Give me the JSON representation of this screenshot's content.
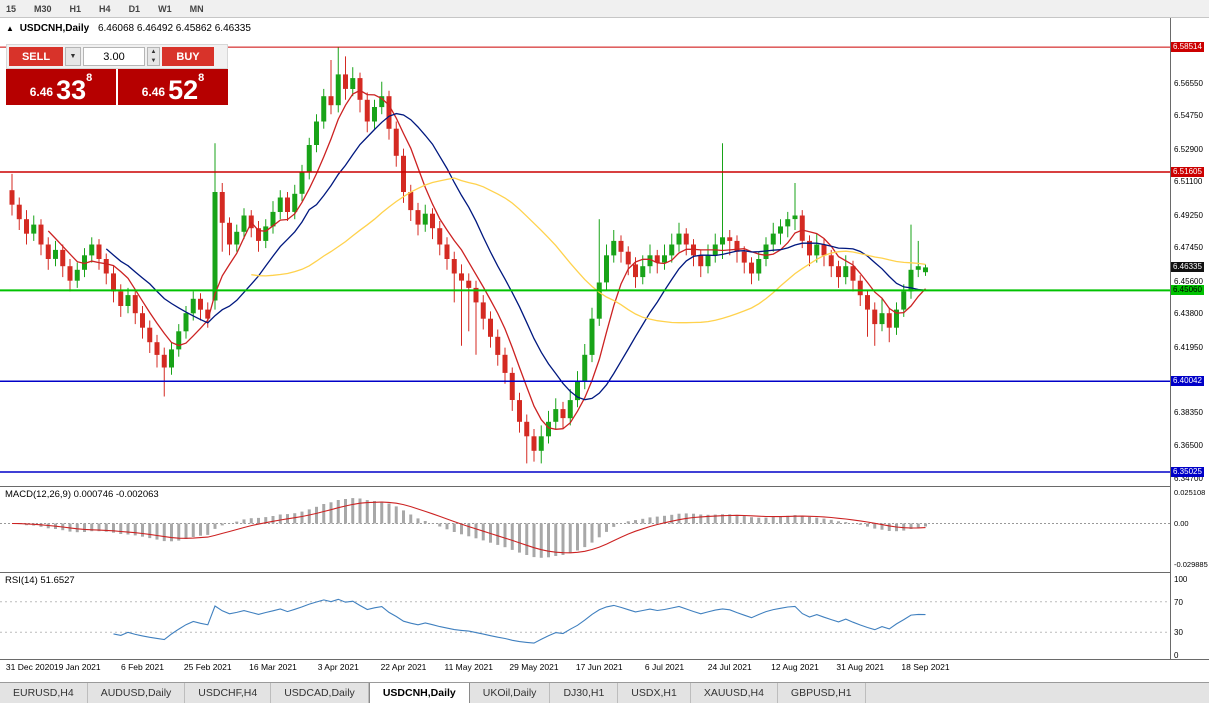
{
  "window": {
    "timeframes": [
      "15",
      "M30",
      "H1",
      "H4",
      "D1",
      "W1",
      "MN"
    ]
  },
  "chart_header": {
    "collapse_icon": "▲",
    "symbol": "USDCNH,Daily",
    "ohlc": "6.46068 6.46492 6.45862 6.46335"
  },
  "trade_panel": {
    "sell_label": "SELL",
    "buy_label": "BUY",
    "volume": "3.00",
    "dropdown_icon": "▼",
    "spin_up_icon": "▲",
    "spin_down_icon": "▼",
    "sell_price": {
      "prefix": "6.46",
      "big": "33",
      "sup": "8"
    },
    "buy_price": {
      "prefix": "6.46",
      "big": "52",
      "sup": "8"
    }
  },
  "indicators": {
    "macd_label": "MACD(12,26,9) 0.000746 -0.002063",
    "rsi_label": "RSI(14) 51.6527"
  },
  "tabs": {
    "active_index": 4,
    "items": [
      "EURUSD,H4",
      "AUDUSD,Daily",
      "USDCHF,H4",
      "USDCAD,Daily",
      "USDCNH,Daily",
      "UKOil,Daily",
      "DJ30,H1",
      "USDX,H1",
      "XAUUSD,H4",
      "GBPUSD,H1"
    ]
  },
  "colors": {
    "button_red": "#d8332a",
    "tile_red": "#b60000",
    "up_candle": "#18a318",
    "down_candle": "#d42a22",
    "ma_fast": "#cc2222",
    "ma_mid": "#00187f",
    "ma_slow": "#ffd24d",
    "level_red": "#cc0000",
    "level_green": "#00c200",
    "level_blue": "#0000c8",
    "macd_hist": "#a8a8a8",
    "macd_signal": "#cc2222",
    "rsi_line": "#4080bf",
    "current_tag_bg": "#111111"
  },
  "chart_data": {
    "type": "candlestick",
    "symbol": "USDCNH",
    "timeframe": "Daily",
    "title": "USDCNH,Daily",
    "x_labels": [
      "31 Dec 2020",
      "19 Jan 2021",
      "6 Feb 2021",
      "25 Feb 2021",
      "16 Mar 2021",
      "3 Apr 2021",
      "22 Apr 2021",
      "11 May 2021",
      "29 May 2021",
      "17 Jun 2021",
      "6 Jul 2021",
      "24 Jul 2021",
      "12 Aug 2021",
      "31 Aug 2021",
      "18 Sep 2021"
    ],
    "label_every": 9,
    "price_axis": {
      "min": 6.3425,
      "max": 6.6012,
      "ticks": [
        "6.56550",
        "6.54750",
        "6.52900",
        "6.51100",
        "6.49250",
        "6.47450",
        "6.45600",
        "6.43800",
        "6.41950",
        "6.38350",
        "6.36500",
        "6.34700"
      ]
    },
    "special_levels": [
      {
        "label": "6.58514",
        "color_key": "level_red",
        "width": 1,
        "text_color": "#ffffff"
      },
      {
        "label": "6.51605",
        "color_key": "level_red",
        "width": 1.6,
        "text_color": "#ffffff"
      },
      {
        "label": "6.45060",
        "color_key": "level_green",
        "width": 2,
        "text_color": "#000000"
      },
      {
        "label": "6.40042",
        "color_key": "level_blue",
        "width": 1.5,
        "text_color": "#ffffff"
      },
      {
        "label": "6.35025",
        "color_key": "level_blue",
        "width": 1.5,
        "text_color": "#ffffff"
      }
    ],
    "current_price": {
      "label": "6.46335"
    },
    "ma_lines": [
      {
        "period": 6,
        "color_key": "ma_fast"
      },
      {
        "period": 14,
        "color_key": "ma_mid"
      },
      {
        "period": 34,
        "color_key": "ma_slow"
      }
    ],
    "macd": {
      "params": "12,26,9",
      "value": 0.000746,
      "signal": -0.002063,
      "axis": [
        "0.025108",
        "0.00",
        "-0.029885"
      ]
    },
    "rsi": {
      "period": 14,
      "value": 51.6527,
      "axis": [
        "100",
        "70",
        "30",
        "0"
      ]
    },
    "candles": [
      [
        6.506,
        6.515,
        6.492,
        6.498
      ],
      [
        6.498,
        6.502,
        6.484,
        6.49
      ],
      [
        6.49,
        6.495,
        6.476,
        6.482
      ],
      [
        6.482,
        6.492,
        6.478,
        6.487
      ],
      [
        6.487,
        6.49,
        6.47,
        6.476
      ],
      [
        6.476,
        6.48,
        6.462,
        6.468
      ],
      [
        6.468,
        6.478,
        6.464,
        6.473
      ],
      [
        6.473,
        6.476,
        6.458,
        6.464
      ],
      [
        6.464,
        6.468,
        6.45,
        6.456
      ],
      [
        6.456,
        6.466,
        6.452,
        6.462
      ],
      [
        6.462,
        6.474,
        6.458,
        6.47
      ],
      [
        6.47,
        6.48,
        6.466,
        6.476
      ],
      [
        6.476,
        6.479,
        6.462,
        6.468
      ],
      [
        6.468,
        6.471,
        6.454,
        6.46
      ],
      [
        6.46,
        6.464,
        6.444,
        6.45
      ],
      [
        6.45,
        6.454,
        6.436,
        6.442
      ],
      [
        6.442,
        6.452,
        6.438,
        6.448
      ],
      [
        6.448,
        6.451,
        6.432,
        6.438
      ],
      [
        6.438,
        6.442,
        6.424,
        6.43
      ],
      [
        6.43,
        6.434,
        6.416,
        6.422
      ],
      [
        6.422,
        6.426,
        6.408,
        6.415
      ],
      [
        6.415,
        6.419,
        6.392,
        6.408
      ],
      [
        6.408,
        6.422,
        6.404,
        6.418
      ],
      [
        6.418,
        6.432,
        6.414,
        6.428
      ],
      [
        6.428,
        6.442,
        6.424,
        6.438
      ],
      [
        6.438,
        6.45,
        6.434,
        6.446
      ],
      [
        6.446,
        6.449,
        6.434,
        6.44
      ],
      [
        6.44,
        6.444,
        6.43,
        6.435
      ],
      [
        6.445,
        6.532,
        6.44,
        6.505
      ],
      [
        6.505,
        6.51,
        6.472,
        6.488
      ],
      [
        6.488,
        6.491,
        6.47,
        6.476
      ],
      [
        6.476,
        6.487,
        6.472,
        6.483
      ],
      [
        6.483,
        6.496,
        6.479,
        6.492
      ],
      [
        6.492,
        6.495,
        6.48,
        6.485
      ],
      [
        6.485,
        6.489,
        6.472,
        6.478
      ],
      [
        6.478,
        6.49,
        6.474,
        6.486
      ],
      [
        6.486,
        6.5,
        6.482,
        6.494
      ],
      [
        6.494,
        6.506,
        6.49,
        6.502
      ],
      [
        6.502,
        6.505,
        6.489,
        6.494
      ],
      [
        6.494,
        6.509,
        6.49,
        6.504
      ],
      [
        6.504,
        6.52,
        6.5,
        6.516
      ],
      [
        6.516,
        6.535,
        6.512,
        6.531
      ],
      [
        6.531,
        6.548,
        6.527,
        6.544
      ],
      [
        6.544,
        6.562,
        6.54,
        6.558
      ],
      [
        6.558,
        6.578,
        6.548,
        6.553
      ],
      [
        6.553,
        6.5851,
        6.549,
        6.57
      ],
      [
        6.57,
        6.58,
        6.556,
        6.562
      ],
      [
        6.562,
        6.574,
        6.558,
        6.568
      ],
      [
        6.568,
        6.571,
        6.549,
        6.556
      ],
      [
        6.556,
        6.56,
        6.538,
        6.544
      ],
      [
        6.544,
        6.556,
        6.54,
        6.552
      ],
      [
        6.552,
        6.566,
        6.548,
        6.558
      ],
      [
        6.558,
        6.561,
        6.534,
        6.54
      ],
      [
        6.54,
        6.544,
        6.519,
        6.525
      ],
      [
        6.525,
        6.529,
        6.499,
        6.505
      ],
      [
        6.505,
        6.509,
        6.489,
        6.495
      ],
      [
        6.495,
        6.499,
        6.481,
        6.487
      ],
      [
        6.487,
        6.498,
        6.483,
        6.493
      ],
      [
        6.493,
        6.496,
        6.479,
        6.485
      ],
      [
        6.485,
        6.489,
        6.47,
        6.476
      ],
      [
        6.476,
        6.48,
        6.462,
        6.468
      ],
      [
        6.468,
        6.472,
        6.444,
        6.46
      ],
      [
        6.46,
        6.465,
        6.42,
        6.456
      ],
      [
        6.456,
        6.46,
        6.428,
        6.452
      ],
      [
        6.452,
        6.456,
        6.415,
        6.444
      ],
      [
        6.444,
        6.448,
        6.429,
        6.435
      ],
      [
        6.435,
        6.439,
        6.419,
        6.425
      ],
      [
        6.425,
        6.429,
        6.409,
        6.415
      ],
      [
        6.415,
        6.419,
        6.399,
        6.405
      ],
      [
        6.405,
        6.408,
        6.384,
        6.39
      ],
      [
        6.39,
        6.394,
        6.372,
        6.378
      ],
      [
        6.378,
        6.382,
        6.355,
        6.37
      ],
      [
        6.37,
        6.374,
        6.356,
        6.362
      ],
      [
        6.362,
        6.376,
        6.355,
        6.37
      ],
      [
        6.37,
        6.384,
        6.366,
        6.378
      ],
      [
        6.378,
        6.391,
        6.374,
        6.385
      ],
      [
        6.385,
        6.389,
        6.374,
        6.38
      ],
      [
        6.38,
        6.396,
        6.376,
        6.39
      ],
      [
        6.39,
        6.406,
        6.386,
        6.4
      ],
      [
        6.4,
        6.421,
        6.396,
        6.415
      ],
      [
        6.415,
        6.441,
        6.411,
        6.435
      ],
      [
        6.435,
        6.49,
        6.431,
        6.455
      ],
      [
        6.455,
        6.476,
        6.451,
        6.47
      ],
      [
        6.47,
        6.484,
        6.466,
        6.478
      ],
      [
        6.478,
        6.481,
        6.466,
        6.472
      ],
      [
        6.472,
        6.475,
        6.459,
        6.465
      ],
      [
        6.465,
        6.469,
        6.452,
        6.458
      ],
      [
        6.458,
        6.47,
        6.454,
        6.464
      ],
      [
        6.464,
        6.476,
        6.46,
        6.47
      ],
      [
        6.47,
        6.473,
        6.46,
        6.466
      ],
      [
        6.466,
        6.476,
        6.462,
        6.47
      ],
      [
        6.47,
        6.482,
        6.466,
        6.476
      ],
      [
        6.476,
        6.488,
        6.472,
        6.482
      ],
      [
        6.482,
        6.485,
        6.47,
        6.476
      ],
      [
        6.476,
        6.479,
        6.464,
        6.47
      ],
      [
        6.47,
        6.473,
        6.458,
        6.464
      ],
      [
        6.464,
        6.476,
        6.46,
        6.47
      ],
      [
        6.47,
        6.482,
        6.466,
        6.476
      ],
      [
        6.476,
        6.532,
        6.468,
        6.48
      ],
      [
        6.48,
        6.484,
        6.47,
        6.478
      ],
      [
        6.478,
        6.481,
        6.466,
        6.472
      ],
      [
        6.472,
        6.475,
        6.46,
        6.466
      ],
      [
        6.466,
        6.469,
        6.454,
        6.46
      ],
      [
        6.46,
        6.472,
        6.456,
        6.468
      ],
      [
        6.468,
        6.48,
        6.464,
        6.476
      ],
      [
        6.476,
        6.488,
        6.472,
        6.482
      ],
      [
        6.482,
        6.49,
        6.476,
        6.486
      ],
      [
        6.486,
        6.494,
        6.48,
        6.49
      ],
      [
        6.49,
        6.51,
        6.484,
        6.492
      ],
      [
        6.492,
        6.495,
        6.474,
        6.478
      ],
      [
        6.478,
        6.481,
        6.464,
        6.47
      ],
      [
        6.47,
        6.482,
        6.466,
        6.476
      ],
      [
        6.476,
        6.479,
        6.464,
        6.47
      ],
      [
        6.47,
        6.473,
        6.458,
        6.464
      ],
      [
        6.464,
        6.467,
        6.452,
        6.458
      ],
      [
        6.458,
        6.47,
        6.454,
        6.464
      ],
      [
        6.464,
        6.467,
        6.45,
        6.456
      ],
      [
        6.456,
        6.459,
        6.442,
        6.448
      ],
      [
        6.448,
        6.451,
        6.425,
        6.44
      ],
      [
        6.44,
        6.444,
        6.42,
        6.432
      ],
      [
        6.432,
        6.446,
        6.428,
        6.438
      ],
      [
        6.438,
        6.441,
        6.422,
        6.43
      ],
      [
        6.43,
        6.444,
        6.426,
        6.44
      ],
      [
        6.44,
        6.454,
        6.436,
        6.45
      ],
      [
        6.45,
        6.487,
        6.446,
        6.462
      ],
      [
        6.462,
        6.478,
        6.458,
        6.464
      ],
      [
        6.46068,
        6.46492,
        6.45862,
        6.46335
      ]
    ]
  }
}
